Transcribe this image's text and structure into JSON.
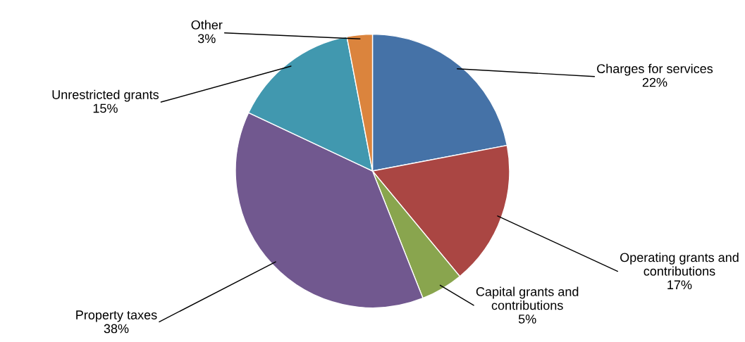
{
  "chart_data": {
    "type": "pie",
    "categories": [
      "Charges for services",
      "Operating grants and\ncontributions",
      "Capital grants and\ncontributions",
      "Property taxes",
      "Unrestricted grants",
      "Other"
    ],
    "values": [
      22,
      17,
      5,
      38,
      15,
      3
    ],
    "value_labels": [
      "22%",
      "17%",
      "5%",
      "38%",
      "15%",
      "3%"
    ],
    "colors": [
      "#4572a7",
      "#aa4643",
      "#89a54e",
      "#71588f",
      "#4198af",
      "#db843d"
    ]
  }
}
